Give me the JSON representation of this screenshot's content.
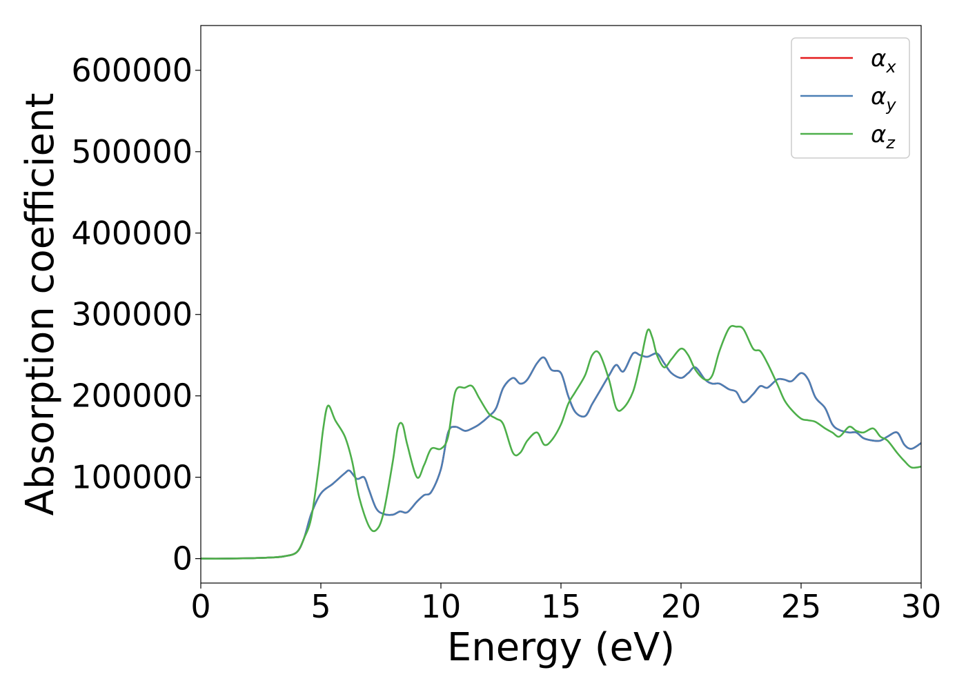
{
  "chart_data": {
    "type": "line",
    "xlabel": "Energy (eV)",
    "ylabel": "Absorption coefficient",
    "xlim": [
      0,
      30
    ],
    "ylim": [
      -30000,
      655000
    ],
    "xticks": [
      0,
      5,
      10,
      15,
      20,
      25,
      30
    ],
    "yticks": [
      0,
      100000,
      200000,
      300000,
      400000,
      500000,
      600000
    ],
    "grid": false,
    "legend_position": "top-right",
    "series": [
      {
        "name": "αx",
        "sub": "x",
        "color": "#e41a1c",
        "x": [
          0,
          1,
          2,
          3,
          3.5,
          4,
          4.3,
          4.6,
          5,
          5.5,
          6,
          6.2,
          6.5,
          6.8,
          7,
          7.3,
          7.6,
          8,
          8.3,
          8.6,
          9,
          9.3,
          9.6,
          10,
          10.3,
          10.6,
          11,
          11.3,
          11.6,
          12,
          12.3,
          12.6,
          13,
          13.3,
          13.6,
          14,
          14.3,
          14.6,
          15,
          15.3,
          15.6,
          16,
          16.3,
          16.6,
          17,
          17.3,
          17.6,
          18,
          18.3,
          18.6,
          19,
          19.3,
          19.6,
          20,
          20.3,
          20.6,
          21,
          21.3,
          21.6,
          22,
          22.3,
          22.6,
          23,
          23.3,
          23.6,
          24,
          24.3,
          24.6,
          25,
          25.3,
          25.6,
          26,
          26.3,
          26.6,
          27,
          27.3,
          27.6,
          28,
          28.3,
          28.6,
          29,
          29.3,
          29.6,
          30
        ],
        "values": [
          0,
          0,
          500,
          1500,
          3000,
          8000,
          25000,
          55000,
          80000,
          92000,
          105000,
          108000,
          98000,
          100000,
          85000,
          62000,
          55000,
          54000,
          58000,
          57000,
          70000,
          78000,
          82000,
          110000,
          155000,
          162000,
          157000,
          160000,
          165000,
          175000,
          185000,
          210000,
          222000,
          215000,
          220000,
          240000,
          247000,
          232000,
          228000,
          200000,
          180000,
          175000,
          190000,
          205000,
          225000,
          238000,
          230000,
          252000,
          250000,
          248000,
          252000,
          240000,
          228000,
          222000,
          228000,
          235000,
          220000,
          215000,
          215000,
          208000,
          205000,
          192000,
          202000,
          212000,
          210000,
          220000,
          220000,
          218000,
          228000,
          220000,
          198000,
          185000,
          165000,
          158000,
          155000,
          155000,
          148000,
          145000,
          145000,
          150000,
          155000,
          140000,
          135000,
          142000
        ]
      },
      {
        "name": "αy",
        "sub": "y",
        "color": "#4a7fb5",
        "x": [
          0,
          1,
          2,
          3,
          3.5,
          4,
          4.3,
          4.6,
          5,
          5.5,
          6,
          6.2,
          6.5,
          6.8,
          7,
          7.3,
          7.6,
          8,
          8.3,
          8.6,
          9,
          9.3,
          9.6,
          10,
          10.3,
          10.6,
          11,
          11.3,
          11.6,
          12,
          12.3,
          12.6,
          13,
          13.3,
          13.6,
          14,
          14.3,
          14.6,
          15,
          15.3,
          15.6,
          16,
          16.3,
          16.6,
          17,
          17.3,
          17.6,
          18,
          18.3,
          18.6,
          19,
          19.3,
          19.6,
          20,
          20.3,
          20.6,
          21,
          21.3,
          21.6,
          22,
          22.3,
          22.6,
          23,
          23.3,
          23.6,
          24,
          24.3,
          24.6,
          25,
          25.3,
          25.6,
          26,
          26.3,
          26.6,
          27,
          27.3,
          27.6,
          28,
          28.3,
          28.6,
          29,
          29.3,
          29.6,
          30
        ],
        "values": [
          0,
          0,
          500,
          1500,
          3000,
          8000,
          25000,
          55000,
          80000,
          92000,
          105000,
          108000,
          98000,
          100000,
          85000,
          62000,
          55000,
          54000,
          58000,
          57000,
          70000,
          78000,
          82000,
          110000,
          155000,
          162000,
          157000,
          160000,
          165000,
          175000,
          185000,
          210000,
          222000,
          215000,
          220000,
          240000,
          247000,
          232000,
          228000,
          200000,
          180000,
          175000,
          190000,
          205000,
          225000,
          238000,
          230000,
          252000,
          250000,
          248000,
          252000,
          240000,
          228000,
          222000,
          228000,
          235000,
          220000,
          215000,
          215000,
          208000,
          205000,
          192000,
          202000,
          212000,
          210000,
          220000,
          220000,
          218000,
          228000,
          220000,
          198000,
          185000,
          165000,
          158000,
          155000,
          155000,
          148000,
          145000,
          145000,
          150000,
          155000,
          140000,
          135000,
          142000
        ]
      },
      {
        "name": "αz",
        "sub": "z",
        "color": "#4daf4a",
        "x": [
          0,
          1,
          2,
          3,
          3.5,
          4,
          4.3,
          4.6,
          4.9,
          5.1,
          5.3,
          5.6,
          6,
          6.3,
          6.6,
          7,
          7.3,
          7.6,
          8,
          8.2,
          8.4,
          8.6,
          9,
          9.3,
          9.6,
          10,
          10.3,
          10.6,
          11,
          11.3,
          11.6,
          12,
          12.3,
          12.6,
          13,
          13.3,
          13.6,
          14,
          14.3,
          14.6,
          15,
          15.3,
          15.6,
          16,
          16.3,
          16.6,
          17,
          17.3,
          17.6,
          18,
          18.3,
          18.6,
          18.8,
          19,
          19.3,
          19.6,
          20,
          20.3,
          20.6,
          21,
          21.3,
          21.6,
          22,
          22.3,
          22.6,
          23,
          23.3,
          23.6,
          24,
          24.3,
          24.6,
          25,
          25.3,
          25.6,
          26,
          26.3,
          26.6,
          27,
          27.3,
          27.6,
          28,
          28.3,
          28.6,
          29,
          29.3,
          29.6,
          30
        ],
        "values": [
          0,
          0,
          500,
          1500,
          3000,
          8000,
          25000,
          50000,
          110000,
          160000,
          188000,
          170000,
          150000,
          120000,
          75000,
          40000,
          35000,
          55000,
          120000,
          160000,
          165000,
          140000,
          100000,
          115000,
          135000,
          135000,
          150000,
          205000,
          210000,
          212000,
          197000,
          178000,
          172000,
          165000,
          130000,
          130000,
          145000,
          155000,
          140000,
          145000,
          165000,
          190000,
          205000,
          225000,
          250000,
          252000,
          220000,
          185000,
          185000,
          205000,
          240000,
          280000,
          272000,
          250000,
          235000,
          245000,
          258000,
          250000,
          232000,
          220000,
          225000,
          255000,
          283000,
          285000,
          282000,
          258000,
          255000,
          240000,
          215000,
          195000,
          183000,
          172000,
          170000,
          168000,
          160000,
          155000,
          150000,
          162000,
          157000,
          155000,
          160000,
          150000,
          145000,
          130000,
          120000,
          112000,
          113000
        ]
      }
    ]
  }
}
